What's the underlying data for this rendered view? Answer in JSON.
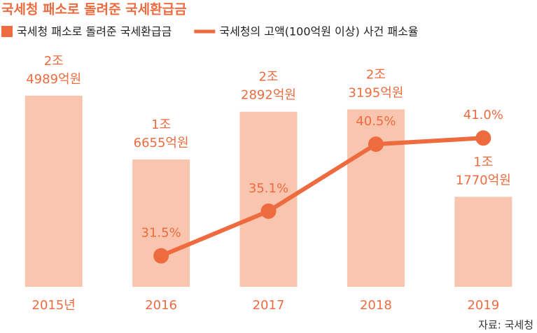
{
  "chart_data": {
    "type": "bar",
    "title": "국세청 패소로 돌려준 국세환급금",
    "source": "자료: 국세청",
    "categories": [
      "2015년",
      "2016",
      "2017",
      "2018",
      "2019"
    ],
    "series": [
      {
        "name": "국세청 패소로 돌려준 국세환급금",
        "color": "#f9c5ae",
        "values": [
          24989,
          16655,
          22892,
          23195,
          11770
        ],
        "value_labels": [
          "2조 4989억원",
          "1조 6655억원",
          "2조 2892억원",
          "2조 3195억원",
          "1조 1770억원"
        ]
      },
      {
        "name": "국세청의 고액(100억원 이상) 사건 패소율",
        "type": "line",
        "axis": "y2",
        "color": "#ee6b3f",
        "values": [
          null,
          31.5,
          35.1,
          40.5,
          41.0
        ],
        "value_labels": [
          null,
          "31.5%",
          "35.1%",
          "40.5%",
          "41.0%"
        ]
      }
    ],
    "ylim": [
      0,
      30000
    ],
    "y2lim": [
      29,
      47.5
    ],
    "legend": "top-left"
  }
}
